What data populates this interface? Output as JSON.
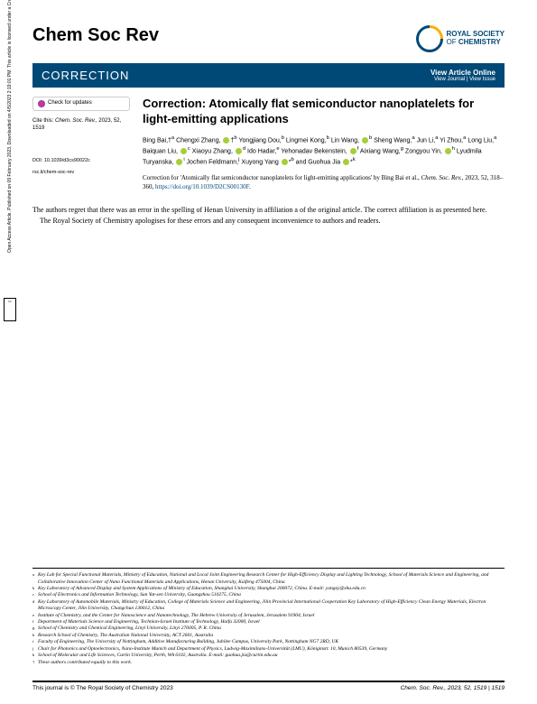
{
  "journal": "Chem Soc Rev",
  "publisher": {
    "line1": "ROYAL SOCIETY",
    "line2_a": "OF ",
    "line2_b": "CHEMISTRY"
  },
  "banner": {
    "label": "CORRECTION",
    "link1": "View Article Online",
    "link2": "View Journal | View Issue"
  },
  "check_updates": "Check for updates",
  "cite": {
    "prefix": "Cite this: ",
    "journal": "Chem. Soc. Rev.",
    "year_vol": ", 2023, 52, 1519"
  },
  "doi": "DOI: 10.1039/d3cs90022c",
  "rsc_li": "rsc.li/chem-soc-rev",
  "title": "Correction: Atomically flat semiconductor nanoplatelets for light-emitting applications",
  "authors_html": "Bing Bai,†<sup>a</sup> Chengxi Zhang, [O]†<sup>b</sup> Yongjiang Dou,<sup>b</sup> Lingmei Kong,<sup>b</sup> Lin Wang, [O]<sup>b</sup> Sheng Wang,<sup>a</sup> Jun Li,<sup>a</sup> Yi Zhou,<sup>a</sup> Long Liu,<sup>a</sup> Baiquan Liu, [O]<sup>c</sup> Xiaoyu Zhang, [O]<sup>d</sup> Ido Hadar,<sup>e</sup> Yehonadav Bekenstein, [O]<sup>f</sup> Aixiang Wang,<sup>g</sup> Zongyou Yin, [O]<sup>h</sup> Lyudmila Turyanska, [O]<sup>i</sup> Jochen Feldmann,<sup>j</sup> Xuyong Yang [O]*<sup>b</sup> and Guohua Jia [O]*<sup>k</sup>",
  "correction_line": {
    "pre": "Correction for 'Atomically flat semiconductor nanoplatelets for light-emitting applications' by Bing Bai et al., ",
    "ref": "Chem. Soc. Rev.",
    "post": ", 2023, 52, 318–360, ",
    "link": "https://doi.org/10.1039/D2CS00130F",
    "end": "."
  },
  "body": [
    "The authors regret that there was an error in the spelling of Henan University in affiliation a of the original article. The correct affiliation is as presented here.",
    "The Royal Society of Chemistry apologises for these errors and any consequent inconvenience to authors and readers."
  ],
  "affiliations": [
    {
      "s": "a",
      "t": "Key Lab for Special Functional Materials, Ministry of Education, National and Local Joint Engineering Research Center for High-Efficiency Display and Lighting Technology, School of Materials Science and Engineering, and Collaborative Innovation Center of Nano Functional Materials and Applications, Henan University, Kaifeng 475004, China"
    },
    {
      "s": "b",
      "t": "Key Laboratory of Advanced Display and System Applications of Ministry of Education, Shanghai University, Shanghai 200072, China. E-mail: yangxy@shu.edu.cn"
    },
    {
      "s": "c",
      "t": "School of Electronics and Information Technology, Sun Yat-sen University, Guangzhou 510275, China"
    },
    {
      "s": "d",
      "t": "Key Laboratory of Automobile Materials, Ministry of Education, College of Materials Science and Engineering, Jilin Provincial International Cooperation Key Laboratory of High-Efficiency Clean Energy Materials, Electron Microscopy Center, Jilin University, Changchun 130012, China"
    },
    {
      "s": "e",
      "t": "Institute of Chemistry, and the Center for Nanoscience and Nanotechnology, The Hebrew University of Jerusalem, Jerusalem 91904, Israel"
    },
    {
      "s": "f",
      "t": "Department of Materials Science and Engineering, Technion-Israel Institute of Technology, Haifa 32000, Israel"
    },
    {
      "s": "g",
      "t": "School of Chemistry and Chemical Engineering, Linyi University, Linyi 276005, P. R. China"
    },
    {
      "s": "h",
      "t": "Research School of Chemistry, The Australian National University, ACT 2601, Australia"
    },
    {
      "s": "i",
      "t": "Faculty of Engineering, The University of Nottingham, Additive Manufacturing Building, Jubilee Campus, University Park, Nottingham NG7 2RD, UK"
    },
    {
      "s": "j",
      "t": "Chair for Photonics and Optoelectronics, Nano-Institute Munich and Department of Physics, Ludwig-Maximilians-Universität (LMU), Königinstr. 10, Munich 80539, Germany"
    },
    {
      "s": "k",
      "t": "School of Molecular and Life Sciences, Curtin University, Perth, WA 6102, Australia. E-mail: guohua.jia@curtin.edu.au"
    },
    {
      "s": "†",
      "t": "These authors contributed equally to this work."
    }
  ],
  "footer": {
    "left": "This journal is © The Royal Society of Chemistry 2023",
    "right": "Chem. Soc. Rev., 2023, 52, 1519 | 1519"
  },
  "side": "Open Access Article. Published on 09 February 2023. Downloaded on 4/5/2023 2:19:01 PM. This article is licensed under a Creative Commons Attribution 3.0 Unported Licence."
}
